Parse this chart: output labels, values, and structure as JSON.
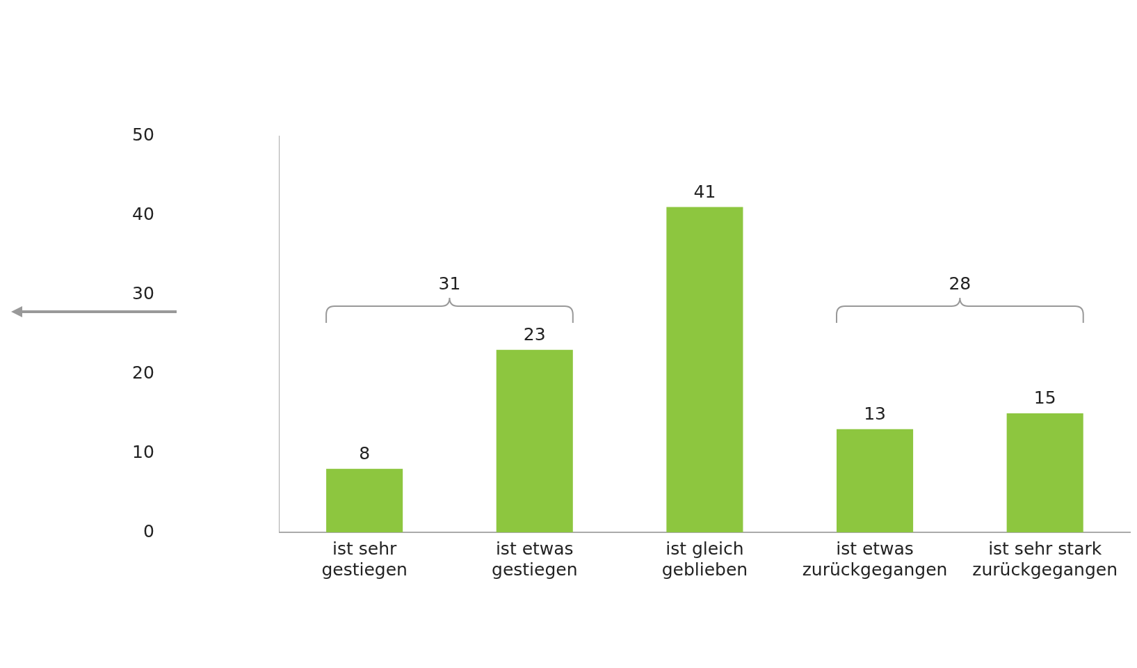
{
  "chart_data": {
    "type": "bar",
    "categories": [
      "ist sehr gestiegen",
      "ist etwas gestiegen",
      "ist gleich geblieben",
      "ist etwas zurückgegangen",
      "ist sehr stark zurückgegangen"
    ],
    "values": [
      8,
      23,
      41,
      13,
      15
    ],
    "color": "#8dc63f",
    "ylim": [
      0,
      50
    ],
    "yticks": [
      0,
      10,
      20,
      30,
      40,
      50
    ],
    "grid": false,
    "legend": false,
    "data_labels": true,
    "annotations": [
      "31",
      "28"
    ]
  }
}
